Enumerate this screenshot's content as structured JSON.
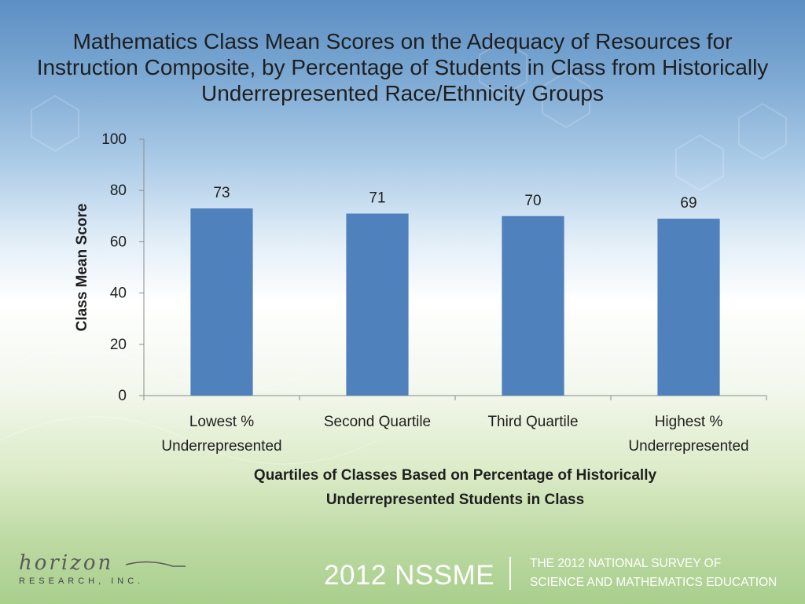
{
  "chart_data": {
    "type": "bar",
    "title": "Mathematics Class Mean Scores on the Adequacy of Resources for Instruction Composite, by Percentage of Students in Class from Historically Underrepresented Race/Ethnicity Groups",
    "categories": [
      [
        "Lowest %",
        "Underrepresented"
      ],
      [
        "Second Quartile"
      ],
      [
        "Third Quartile"
      ],
      [
        "Highest %",
        "Underrepresented"
      ]
    ],
    "values": [
      73,
      71,
      70,
      69
    ],
    "data_labels": [
      "73",
      "71",
      "70",
      "69"
    ],
    "ylabel": "Class Mean Score",
    "xlabel": [
      "Quartiles of Classes Based on Percentage of Historically",
      "Underrepresented Students in Class"
    ],
    "ylim": [
      0,
      100
    ],
    "yticks": [
      0,
      20,
      40,
      60,
      80,
      100
    ],
    "grid": false,
    "legend": "none",
    "bar_color": "#4f81bd"
  },
  "footer": {
    "year_label": "2012 NSSME",
    "survey_line1": "THE 2012 NATIONAL SURVEY OF",
    "survey_line2": "SCIENCE AND MATHEMATICS EDUCATION"
  },
  "logo": {
    "wordmark": "horizon",
    "subtitle": "RESEARCH, INC."
  }
}
